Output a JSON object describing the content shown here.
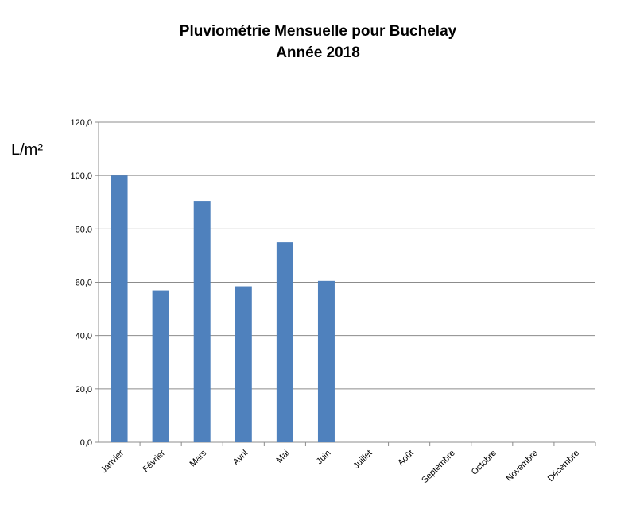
{
  "chart_data": {
    "type": "bar",
    "title": "Pluviométrie Mensuelle pour Buchelay",
    "subtitle": "Année 2018",
    "xlabel": "",
    "ylabel": "L/m²",
    "categories": [
      "Janvier",
      "Février",
      "Mars",
      "Avril",
      "Mai",
      "Juin",
      "Juillet",
      "Août",
      "Septembre",
      "Octobre",
      "Novembre",
      "Décembre"
    ],
    "values": [
      100.0,
      57.0,
      90.5,
      58.5,
      75.0,
      60.5,
      null,
      null,
      null,
      null,
      null,
      null
    ],
    "ylim": [
      0,
      120
    ],
    "yticks": [
      "0,0",
      "20,0",
      "40,0",
      "60,0",
      "80,0",
      "100,0",
      "120,0"
    ],
    "grid": true,
    "legend": "none",
    "bar_color": "#4f81bd"
  }
}
